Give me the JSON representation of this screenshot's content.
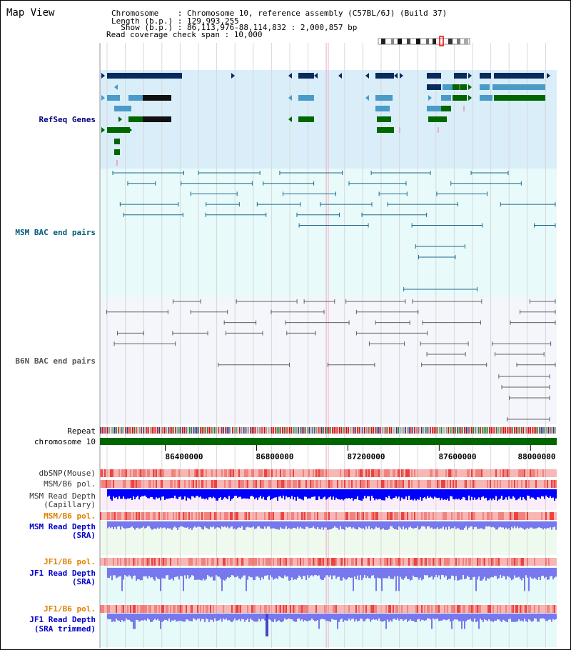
{
  "header": {
    "title": "Map View",
    "chromosome_line": "Chromosome    : Chromosome 10, reference assembly (C57BL/6J) (Build 37)",
    "length_line": "Length (b.p.) : 129,993,255",
    "show_line": "  Show (b.p.) : 86,113,976-88,114,832 : 2,000,857 bp",
    "coverage_line": "Read coverage check span : 10,000"
  },
  "tracks": {
    "refseq": "RefSeq Genes",
    "msm_bac": "MSM BAC end pairs",
    "b6n_bac": "B6N BAC end pairs",
    "repeat": "Repeat",
    "chromosome": "chromosome 10",
    "dbsnp": "dbSNP(Mouse)",
    "msm_b6_pol_1": "MSM/B6 pol.",
    "msm_read_depth_cap_1": "MSM Read Depth",
    "msm_read_depth_cap_2": "(Capillary)",
    "msm_b6_pol_2": "MSM/B6 pol.",
    "msm_read_depth_sra_1": "MSM Read Depth",
    "msm_read_depth_sra_2": "(SRA)",
    "jf1_pol_1": "JF1/B6 pol.",
    "jf1_read_depth_1": "JF1 Read Depth",
    "jf1_read_depth_2": "(SRA)",
    "jf1_pol_2": "JF1/B6 pol.",
    "jf1_read_depth_trim_1": "JF1 Read Depth",
    "jf1_read_depth_trim_2": "(SRA trimmed)"
  },
  "axis": {
    "ticks": [
      "86400000",
      "86800000",
      "87200000",
      "87600000",
      "88000000"
    ],
    "tick_values": [
      86400000,
      86800000,
      87200000,
      87600000,
      88000000
    ],
    "start": 86113976,
    "end": 88114832
  },
  "colors": {
    "refseq_bg": "#d9eef9",
    "msm_bac_bg": "#e8fafa",
    "b6n_bac_bg": "#f4f6fb",
    "gene_dark": "#0a2a5e",
    "gene_mid": "#4a9bc8",
    "gene_green": "#006600",
    "msm_line": "#1a6b8c",
    "b6n_line": "#606060",
    "chromosome_bar": "#006600",
    "snp_red": "#e8302a",
    "depth_blue": "#0000ff",
    "depth_sra": "#7777ee",
    "label_navy": "#000080",
    "label_teal": "#005a7a",
    "label_gray": "#555555",
    "label_orange": "#e08000",
    "label_blue": "#0000cc"
  }
}
